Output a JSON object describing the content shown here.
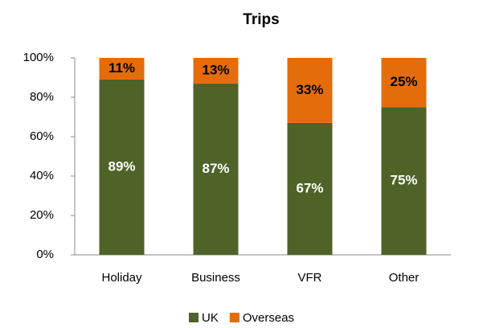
{
  "chart_data": {
    "type": "stacked_bar",
    "title": "Trips",
    "categories": [
      "Holiday",
      "Business",
      "VFR",
      "Other"
    ],
    "series": [
      {
        "name": "UK",
        "color": "#4f6228",
        "values": [
          89,
          87,
          67,
          75
        ],
        "value_labels": [
          "89%",
          "87%",
          "67%",
          "75%"
        ]
      },
      {
        "name": "Overseas",
        "color": "#e46c0a",
        "values": [
          11,
          13,
          33,
          25
        ],
        "value_labels": [
          "11%",
          "13%",
          "33%",
          "25%"
        ]
      }
    ],
    "ylim": [
      0,
      100
    ],
    "yticks": [
      {
        "value": 0,
        "label": "0%"
      },
      {
        "value": 20,
        "label": "20%"
      },
      {
        "value": 40,
        "label": "40%"
      },
      {
        "value": 60,
        "label": "60%"
      },
      {
        "value": 80,
        "label": "80%"
      },
      {
        "value": 100,
        "label": "100%"
      }
    ],
    "legend": "bottom"
  }
}
